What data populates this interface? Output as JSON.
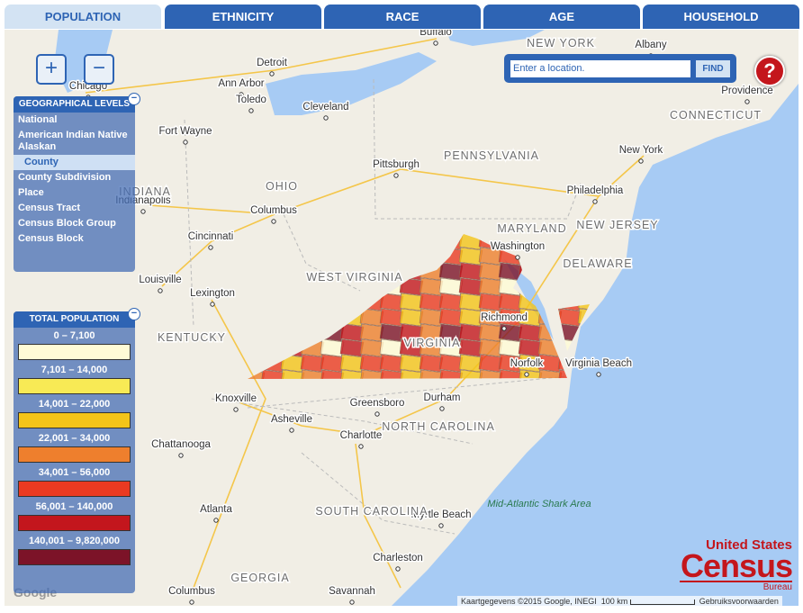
{
  "tabs": [
    "POPULATION",
    "ETHNICITY",
    "RACE",
    "AGE",
    "HOUSEHOLD"
  ],
  "active_tab": "POPULATION",
  "zoom": {
    "in": "+",
    "out": "−"
  },
  "search": {
    "placeholder": "Enter a location.",
    "button": "FIND",
    "help": "?"
  },
  "geo_levels": {
    "title": "GEOGRAPHICAL LEVELS",
    "items": [
      "National",
      "American Indian Native Alaskan",
      "County",
      "County Subdivision",
      "Place",
      "Census Tract",
      "Census Block Group",
      "Census Block"
    ],
    "selected": "County"
  },
  "legend": {
    "title": "TOTAL POPULATION",
    "items": [
      {
        "label": "0 – 7,100",
        "color": "#fffbd6"
      },
      {
        "label": "7,101 – 14,000",
        "color": "#f8ea55"
      },
      {
        "label": "14,001 – 22,000",
        "color": "#f4c419"
      },
      {
        "label": "22,001 – 34,000",
        "color": "#ee7f2d"
      },
      {
        "label": "34,001 – 56,000",
        "color": "#ea3a21"
      },
      {
        "label": "56,001 – 140,000",
        "color": "#c3161d"
      },
      {
        "label": "140,001 – 9,820,000",
        "color": "#7c1328"
      }
    ]
  },
  "map": {
    "cities": [
      "Chicago",
      "Detroit",
      "Ann Arbor",
      "Toledo",
      "Cleveland",
      "Buffalo",
      "Albany",
      "Providence",
      "New York",
      "Pittsburgh",
      "Philadelphia",
      "Fort Wayne",
      "Columbus",
      "Indianapolis",
      "Cincinnati",
      "Louisville",
      "Lexington",
      "Washington",
      "Richmond",
      "Norfolk",
      "Virginia Beach",
      "Knoxville",
      "Asheville",
      "Greensboro",
      "Durham",
      "Charlotte",
      "Chattanooga",
      "Atlanta",
      "Myrtle Beach",
      "Mid-Atlantic Shark Area",
      "Charleston",
      "Columbus",
      "Savannah"
    ],
    "states": [
      "NEW YORK",
      "CONNECTICUT",
      "PENNSYLVANIA",
      "NEW JERSEY",
      "OHIO",
      "INDIANA",
      "MARYLAND",
      "DELAWARE",
      "WEST VIRGINIA",
      "KENTUCKY",
      "VIRGINIA",
      "NORTH CAROLINA",
      "SOUTH CAROLINA",
      "GEORGIA"
    ],
    "google": "Google",
    "attribution": "Kaartgegevens ©2015 Google, INEGI",
    "scale": "100 km",
    "terms": "Gebruiksvoorwaarden"
  },
  "logo": {
    "line1": "United States",
    "line2": "Census",
    "line3": "Bureau"
  }
}
